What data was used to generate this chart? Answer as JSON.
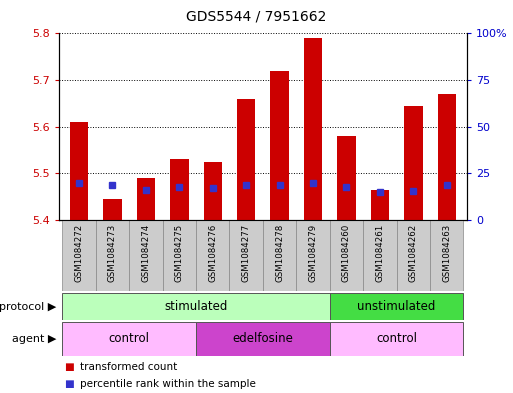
{
  "title": "GDS5544 / 7951662",
  "samples": [
    "GSM1084272",
    "GSM1084273",
    "GSM1084274",
    "GSM1084275",
    "GSM1084276",
    "GSM1084277",
    "GSM1084278",
    "GSM1084279",
    "GSM1084260",
    "GSM1084261",
    "GSM1084262",
    "GSM1084263"
  ],
  "bar_values": [
    5.61,
    5.445,
    5.49,
    5.53,
    5.525,
    5.66,
    5.72,
    5.79,
    5.58,
    5.465,
    5.645,
    5.67
  ],
  "bar_base": 5.4,
  "percentile_values": [
    5.48,
    5.475,
    5.465,
    5.47,
    5.468,
    5.475,
    5.475,
    5.48,
    5.47,
    5.46,
    5.463,
    5.475
  ],
  "ylim_left": [
    5.4,
    5.8
  ],
  "ylim_right": [
    0,
    100
  ],
  "yticks_left": [
    5.4,
    5.5,
    5.6,
    5.7,
    5.8
  ],
  "yticks_right": [
    0,
    25,
    50,
    75,
    100
  ],
  "ytick_labels_right": [
    "0",
    "25",
    "50",
    "75",
    "100%"
  ],
  "bar_color": "#cc0000",
  "percentile_color": "#3333cc",
  "protocol_groups": [
    {
      "label": "stimulated",
      "start": 0,
      "end": 7,
      "color": "#bbffbb"
    },
    {
      "label": "unstimulated",
      "start": 8,
      "end": 11,
      "color": "#44dd44"
    }
  ],
  "agent_groups": [
    {
      "label": "control",
      "start": 0,
      "end": 3,
      "color": "#ffbbff"
    },
    {
      "label": "edelfosine",
      "start": 4,
      "end": 7,
      "color": "#cc44cc"
    },
    {
      "label": "control",
      "start": 8,
      "end": 11,
      "color": "#ffbbff"
    }
  ],
  "legend_bar_label": "transformed count",
  "legend_pct_label": "percentile rank within the sample",
  "protocol_label": "protocol",
  "agent_label": "agent",
  "bar_width": 0.55,
  "tick_label_color_left": "#cc0000",
  "tick_label_color_right": "#0000cc",
  "xlabels_bg": "#cccccc",
  "background_color": "#ffffff",
  "plot_bg_color": "#ffffff",
  "n_samples": 12
}
